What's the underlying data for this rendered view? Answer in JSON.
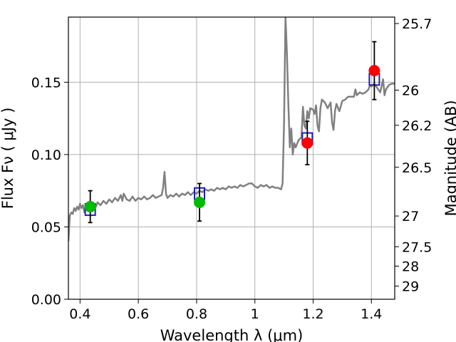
{
  "chart_data": {
    "type": "scatter",
    "xlabel": "Wavelength  λ (μm)",
    "ylabel": "Flux  Fν  ( μJy )",
    "y2label": "Magnitude (AB)",
    "xlim": [
      0.36,
      1.48
    ],
    "ylim": [
      0.0,
      0.195
    ],
    "grid": true,
    "x_ticks": [
      {
        "value": 0.4,
        "label": "0.4"
      },
      {
        "value": 0.6,
        "label": "0.6"
      },
      {
        "value": 0.8,
        "label": "0.8"
      },
      {
        "value": 1.0,
        "label": "1"
      },
      {
        "value": 1.2,
        "label": "1.2"
      },
      {
        "value": 1.4,
        "label": "1.4"
      }
    ],
    "y_ticks": [
      {
        "value": 0.0,
        "label": "0.00"
      },
      {
        "value": 0.05,
        "label": "0.05"
      },
      {
        "value": 0.1,
        "label": "0.10"
      },
      {
        "value": 0.15,
        "label": "0.15"
      }
    ],
    "y2_ticks": [
      {
        "mag": 25.7,
        "label": "25.7"
      },
      {
        "mag": 26.0,
        "label": "26"
      },
      {
        "mag": 26.2,
        "label": "26.2"
      },
      {
        "mag": 26.5,
        "label": "26.5"
      },
      {
        "mag": 27.0,
        "label": "27"
      },
      {
        "mag": 27.5,
        "label": "27.5"
      },
      {
        "mag": 28.0,
        "label": "28"
      },
      {
        "mag": 29.0,
        "label": "29"
      }
    ],
    "colors": {
      "spectrum": "#808080",
      "model_box": "#1f1fbf",
      "observed_green": "#00bb00",
      "observed_red": "#ff0000",
      "grid": "#b0b0b0"
    },
    "spectrum": [
      [
        0.36,
        0.04
      ],
      [
        0.365,
        0.058
      ],
      [
        0.37,
        0.06
      ],
      [
        0.375,
        0.059
      ],
      [
        0.38,
        0.063
      ],
      [
        0.385,
        0.061
      ],
      [
        0.39,
        0.064
      ],
      [
        0.395,
        0.062
      ],
      [
        0.4,
        0.066
      ],
      [
        0.405,
        0.063
      ],
      [
        0.41,
        0.065
      ],
      [
        0.415,
        0.06
      ],
      [
        0.42,
        0.064
      ],
      [
        0.425,
        0.062
      ],
      [
        0.43,
        0.066
      ],
      [
        0.435,
        0.063
      ],
      [
        0.44,
        0.065
      ],
      [
        0.445,
        0.062
      ],
      [
        0.45,
        0.066
      ],
      [
        0.455,
        0.064
      ],
      [
        0.46,
        0.067
      ],
      [
        0.47,
        0.065
      ],
      [
        0.48,
        0.068
      ],
      [
        0.49,
        0.066
      ],
      [
        0.5,
        0.069
      ],
      [
        0.51,
        0.067
      ],
      [
        0.52,
        0.07
      ],
      [
        0.53,
        0.068
      ],
      [
        0.54,
        0.072
      ],
      [
        0.545,
        0.068
      ],
      [
        0.55,
        0.073
      ],
      [
        0.56,
        0.069
      ],
      [
        0.57,
        0.068
      ],
      [
        0.58,
        0.071
      ],
      [
        0.59,
        0.068
      ],
      [
        0.6,
        0.07
      ],
      [
        0.61,
        0.069
      ],
      [
        0.62,
        0.071
      ],
      [
        0.63,
        0.069
      ],
      [
        0.64,
        0.07
      ],
      [
        0.65,
        0.072
      ],
      [
        0.66,
        0.07
      ],
      [
        0.67,
        0.071
      ],
      [
        0.68,
        0.072
      ],
      [
        0.685,
        0.077
      ],
      [
        0.69,
        0.088
      ],
      [
        0.695,
        0.073
      ],
      [
        0.7,
        0.07
      ],
      [
        0.71,
        0.072
      ],
      [
        0.72,
        0.071
      ],
      [
        0.73,
        0.073
      ],
      [
        0.74,
        0.071
      ],
      [
        0.75,
        0.073
      ],
      [
        0.76,
        0.072
      ],
      [
        0.77,
        0.074
      ],
      [
        0.78,
        0.072
      ],
      [
        0.79,
        0.074
      ],
      [
        0.8,
        0.073
      ],
      [
        0.81,
        0.075
      ],
      [
        0.82,
        0.074
      ],
      [
        0.83,
        0.076
      ],
      [
        0.84,
        0.075
      ],
      [
        0.85,
        0.076
      ],
      [
        0.86,
        0.075
      ],
      [
        0.87,
        0.077
      ],
      [
        0.88,
        0.076
      ],
      [
        0.89,
        0.077
      ],
      [
        0.9,
        0.076
      ],
      [
        0.91,
        0.078
      ],
      [
        0.92,
        0.077
      ],
      [
        0.93,
        0.078
      ],
      [
        0.94,
        0.077
      ],
      [
        0.95,
        0.079
      ],
      [
        0.96,
        0.078
      ],
      [
        0.97,
        0.079
      ],
      [
        0.98,
        0.08
      ],
      [
        0.99,
        0.08
      ],
      [
        1.0,
        0.078
      ],
      [
        1.01,
        0.077
      ],
      [
        1.02,
        0.079
      ],
      [
        1.03,
        0.078
      ],
      [
        1.04,
        0.079
      ],
      [
        1.05,
        0.077
      ],
      [
        1.06,
        0.078
      ],
      [
        1.07,
        0.077
      ],
      [
        1.08,
        0.077
      ],
      [
        1.09,
        0.076
      ],
      [
        1.095,
        0.08
      ],
      [
        1.1,
        0.12
      ],
      [
        1.105,
        0.195
      ],
      [
        1.11,
        0.17
      ],
      [
        1.115,
        0.135
      ],
      [
        1.12,
        0.105
      ],
      [
        1.125,
        0.118
      ],
      [
        1.13,
        0.1
      ],
      [
        1.135,
        0.108
      ],
      [
        1.14,
        0.105
      ],
      [
        1.15,
        0.11
      ],
      [
        1.16,
        0.112
      ],
      [
        1.165,
        0.133
      ],
      [
        1.17,
        0.12
      ],
      [
        1.175,
        0.118
      ],
      [
        1.18,
        0.13
      ],
      [
        1.185,
        0.125
      ],
      [
        1.19,
        0.132
      ],
      [
        1.2,
        0.131
      ],
      [
        1.205,
        0.128
      ],
      [
        1.21,
        0.134
      ],
      [
        1.215,
        0.12
      ],
      [
        1.22,
        0.116
      ],
      [
        1.225,
        0.132
      ],
      [
        1.23,
        0.138
      ],
      [
        1.24,
        0.136
      ],
      [
        1.25,
        0.132
      ],
      [
        1.26,
        0.136
      ],
      [
        1.265,
        0.122
      ],
      [
        1.27,
        0.117
      ],
      [
        1.275,
        0.13
      ],
      [
        1.28,
        0.135
      ],
      [
        1.29,
        0.13
      ],
      [
        1.3,
        0.137
      ],
      [
        1.31,
        0.138
      ],
      [
        1.32,
        0.14
      ],
      [
        1.33,
        0.14
      ],
      [
        1.34,
        0.14
      ],
      [
        1.345,
        0.145
      ],
      [
        1.35,
        0.141
      ],
      [
        1.36,
        0.143
      ],
      [
        1.37,
        0.142
      ],
      [
        1.38,
        0.143
      ],
      [
        1.39,
        0.145
      ],
      [
        1.395,
        0.148
      ],
      [
        1.4,
        0.147
      ],
      [
        1.41,
        0.149
      ],
      [
        1.42,
        0.146
      ],
      [
        1.43,
        0.143
      ],
      [
        1.44,
        0.152
      ],
      [
        1.445,
        0.141
      ],
      [
        1.45,
        0.145
      ],
      [
        1.46,
        0.148
      ],
      [
        1.47,
        0.149
      ],
      [
        1.48,
        0.149
      ]
    ],
    "model_points": [
      {
        "x": 0.435,
        "y": 0.062
      },
      {
        "x": 0.81,
        "y": 0.073
      },
      {
        "x": 1.18,
        "y": 0.111
      },
      {
        "x": 1.41,
        "y": 0.152
      }
    ],
    "observed_points": [
      {
        "x": 0.435,
        "y": 0.064,
        "err": 0.011,
        "color": "green"
      },
      {
        "x": 0.81,
        "y": 0.067,
        "err": 0.013,
        "color": "green"
      },
      {
        "x": 1.18,
        "y": 0.108,
        "err": 0.015,
        "color": "red"
      },
      {
        "x": 1.41,
        "y": 0.158,
        "err": 0.02,
        "color": "red"
      }
    ]
  }
}
